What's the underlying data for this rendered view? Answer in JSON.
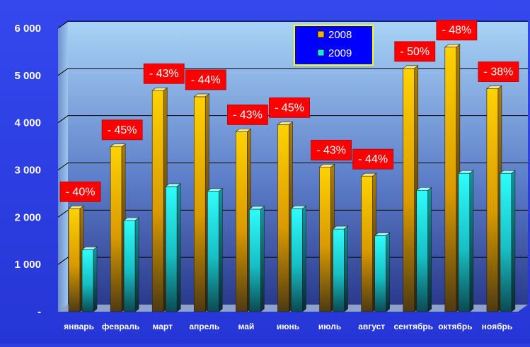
{
  "chart_data": {
    "type": "bar",
    "title": "",
    "xlabel": "",
    "ylabel": "",
    "ylim": [
      0,
      6000
    ],
    "yticks": [
      "-",
      "1 000",
      "2 000",
      "3 000",
      "4 000",
      "5 000",
      "6 000"
    ],
    "categories": [
      "январь",
      "февраль",
      "март",
      "апрель",
      "май",
      "июнь",
      "июль",
      "август",
      "сентябрь",
      "октябрь",
      "ноябрь"
    ],
    "series": [
      {
        "name": "2008",
        "color": "#f2b400",
        "values": [
          2180,
          3490,
          4680,
          4550,
          3810,
          3960,
          3060,
          2870,
          5150,
          5600,
          4720
        ]
      },
      {
        "name": "2009",
        "color": "#19e6e6",
        "values": [
          1310,
          1930,
          2650,
          2550,
          2170,
          2180,
          1750,
          1610,
          2570,
          2930,
          2930
        ]
      }
    ],
    "annotations": [
      "- 40%",
      "- 45%",
      "- 43%",
      "- 44%",
      "- 43%",
      "- 45%",
      "- 43%",
      "- 44%",
      "- 50%",
      "- 48%",
      "- 38%"
    ],
    "grid": true,
    "legend_position": "top-center",
    "colors": {
      "background": "#2f3fe0",
      "annotation_bg": "#ff0000",
      "legend_bg": "#0000ff",
      "legend_border": "#ffff00"
    }
  }
}
